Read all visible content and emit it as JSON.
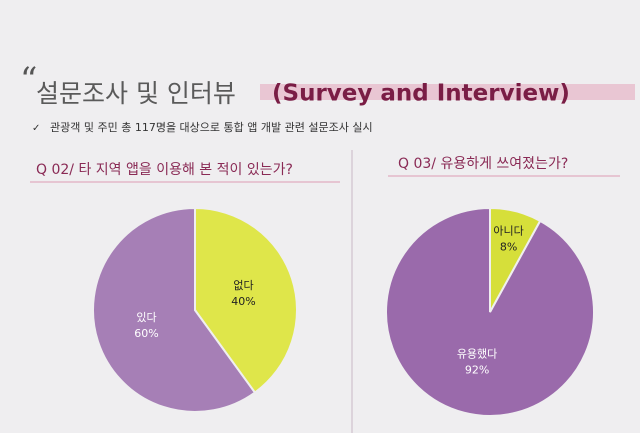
{
  "header": {
    "title": "설문조사 및 인터뷰",
    "title_en": "(Survey and Interview)",
    "note": "관광객 및 주민 총 117명을 대상으로 통합 앱 개발 관련 설문조사 실시"
  },
  "chart_data": [
    {
      "type": "pie",
      "title": "Q 02/ 타 지역 앱을 이용해 본 적이 있는가?",
      "categories": [
        "있다",
        "없다"
      ],
      "values": [
        60,
        40
      ],
      "value_labels": [
        "60%",
        "40%"
      ],
      "colors": [
        "#a67fb6",
        "#dfe64a"
      ]
    },
    {
      "type": "pie",
      "title": "Q 03/ 유용하게 쓰여졌는가?",
      "categories": [
        "유용했다",
        "아니다"
      ],
      "values": [
        92,
        8
      ],
      "value_labels": [
        "92%",
        "8%"
      ],
      "colors": [
        "#9a6aab",
        "#d6df3a"
      ]
    }
  ]
}
